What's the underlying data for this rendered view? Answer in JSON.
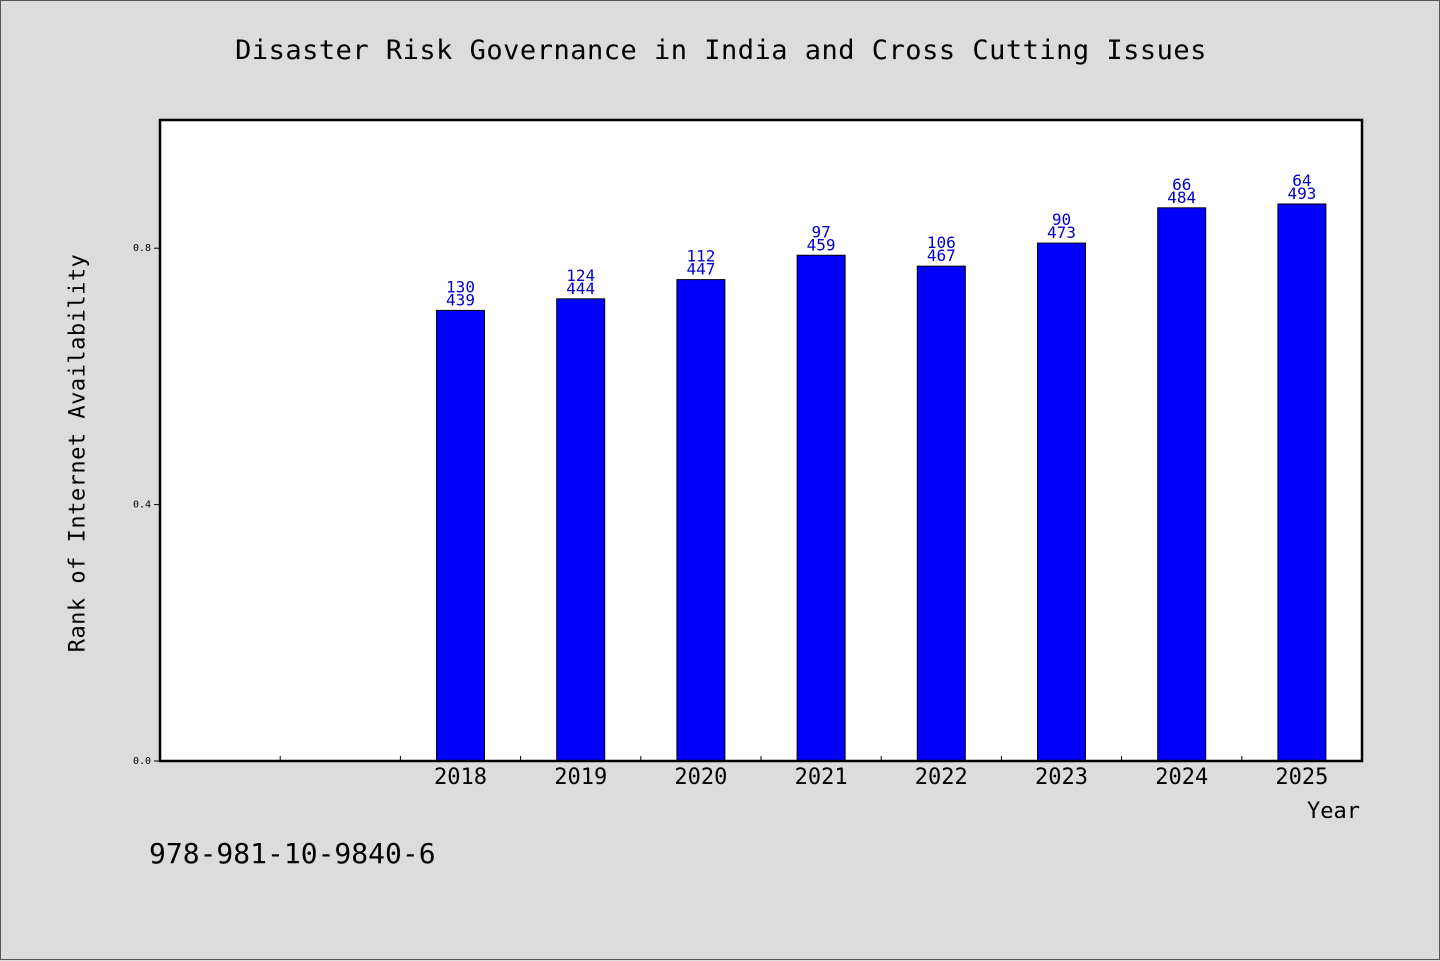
{
  "page": {
    "background": "#dcdcdc"
  },
  "footer": {
    "text": "978-981-10-9840-6"
  },
  "chart_data": {
    "type": "bar",
    "title": "Disaster Risk Governance in India and Cross Cutting Issues",
    "xlabel": "Year",
    "ylabel": "Rank of Internet Availability",
    "x_slots": 10,
    "categories": [
      "2018",
      "2019",
      "2020",
      "2021",
      "2022",
      "2023",
      "2024",
      "2025"
    ],
    "values": [
      0.703,
      0.721,
      0.751,
      0.789,
      0.772,
      0.808,
      0.863,
      0.869
    ],
    "label_top": [
      "130",
      "124",
      "112",
      "97",
      "106",
      "90",
      "66",
      "64"
    ],
    "label_bottom": [
      "439",
      "444",
      "447",
      "459",
      "467",
      "473",
      "484",
      "493"
    ],
    "ylim": [
      0.0,
      1.0
    ],
    "yticks": [
      0.0,
      0.4,
      0.8
    ],
    "ytick_labels": [
      "0.0",
      "0.4",
      "0.8"
    ],
    "grid": false,
    "colors": {
      "bar": "#0000ff",
      "bar_edge": "#000000",
      "data_label": "#0000cc",
      "plot_bg": "#ffffff"
    }
  }
}
